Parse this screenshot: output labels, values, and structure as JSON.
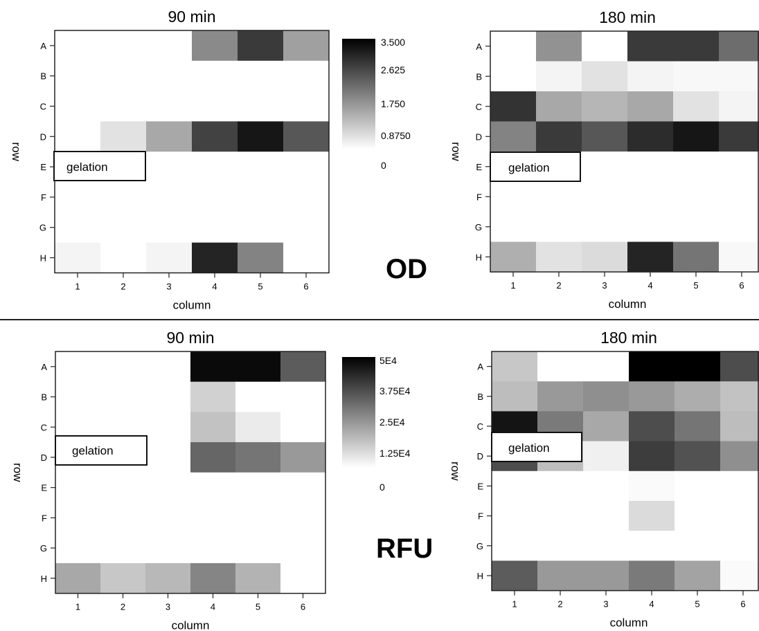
{
  "colors": {
    "low": "#ffffff",
    "high": "#000000",
    "frame": "#222222"
  },
  "labels": {
    "od": "OD",
    "rfu": "RFU",
    "gelation": "gelation"
  },
  "colorbars": {
    "od": {
      "ticks": [
        "3.500",
        "2.625",
        "1.750",
        "0.8750",
        "0"
      ],
      "min": 0,
      "max": 3.5
    },
    "rfu": {
      "ticks": [
        "5E4",
        "3.75E4",
        "2.5E4",
        "1.25E4",
        "0"
      ],
      "min": 0,
      "max": 50000
    }
  },
  "chart_data": [
    {
      "type": "heatmap",
      "title": "90 min",
      "xlabel": "column",
      "ylabel": "row",
      "x": [
        "1",
        "2",
        "3",
        "4",
        "5",
        "6"
      ],
      "y": [
        "A",
        "B",
        "C",
        "D",
        "E",
        "F",
        "G",
        "H"
      ],
      "vmin": 0,
      "vmax": 3.5,
      "values": [
        [
          0,
          0,
          0,
          1.6,
          2.7,
          1.3
        ],
        [
          0,
          0,
          0,
          0,
          0,
          0
        ],
        [
          0,
          0,
          0,
          0,
          0,
          0
        ],
        [
          0,
          0.4,
          1.2,
          2.6,
          3.2,
          2.3
        ],
        [
          0,
          0,
          0,
          0,
          0,
          0
        ],
        [
          0,
          0,
          0,
          0,
          0,
          0
        ],
        [
          0,
          0,
          0,
          0,
          0,
          0
        ],
        [
          0.15,
          0,
          0.15,
          3.0,
          1.7,
          0
        ]
      ]
    },
    {
      "type": "heatmap",
      "title": "180 min",
      "xlabel": "column",
      "ylabel": "row",
      "x": [
        "1",
        "2",
        "3",
        "4",
        "5",
        "6"
      ],
      "y": [
        "A",
        "B",
        "C",
        "D",
        "E",
        "F",
        "G",
        "H"
      ],
      "vmin": 0,
      "vmax": 3.5,
      "values": [
        [
          0,
          1.5,
          0,
          2.7,
          2.7,
          2.0
        ],
        [
          0,
          0.15,
          0.4,
          0.15,
          0.1,
          0.1
        ],
        [
          2.8,
          1.2,
          1.0,
          1.2,
          0.4,
          0.15
        ],
        [
          1.7,
          2.7,
          2.3,
          2.9,
          3.2,
          2.7
        ],
        [
          0,
          0,
          0,
          0,
          0,
          0
        ],
        [
          0,
          0,
          0,
          0,
          0,
          0
        ],
        [
          0,
          0,
          0,
          0,
          0,
          0
        ],
        [
          1.1,
          0.4,
          0.5,
          3.0,
          1.9,
          0.1
        ]
      ]
    },
    {
      "type": "heatmap",
      "title": "90 min",
      "xlabel": "column",
      "ylabel": "row",
      "x": [
        "1",
        "2",
        "3",
        "4",
        "5",
        "6"
      ],
      "y": [
        "A",
        "B",
        "C",
        "D",
        "E",
        "F",
        "G",
        "H"
      ],
      "vmin": 0,
      "vmax": 50000,
      "values": [
        [
          0,
          0,
          0,
          48000,
          48000,
          32000
        ],
        [
          0,
          0,
          0,
          9000,
          0,
          0
        ],
        [
          0,
          0,
          0,
          12000,
          4000,
          0
        ],
        [
          0,
          0,
          0,
          30000,
          27000,
          20000
        ],
        [
          0,
          0,
          0,
          0,
          0,
          0
        ],
        [
          0,
          0,
          0,
          0,
          0,
          0
        ],
        [
          0,
          0,
          0,
          0,
          0,
          0
        ],
        [
          17000,
          11000,
          14000,
          24000,
          15000,
          0
        ]
      ]
    },
    {
      "type": "heatmap",
      "title": "180 min",
      "xlabel": "column",
      "ylabel": "row",
      "x": [
        "1",
        "2",
        "3",
        "4",
        "5",
        "6"
      ],
      "y": [
        "A",
        "B",
        "C",
        "D",
        "E",
        "F",
        "G",
        "H"
      ],
      "vmin": 0,
      "vmax": 50000,
      "values": [
        [
          11000,
          0,
          0,
          50000,
          50000,
          35000
        ],
        [
          13000,
          20000,
          22000,
          20000,
          16000,
          12000
        ],
        [
          46000,
          26000,
          17000,
          35000,
          27000,
          13000
        ],
        [
          35000,
          13000,
          3000,
          38000,
          34000,
          22000
        ],
        [
          0,
          0,
          0,
          1000,
          0,
          0
        ],
        [
          0,
          0,
          0,
          7000,
          0,
          0
        ],
        [
          0,
          0,
          0,
          0,
          0,
          0
        ],
        [
          32000,
          20000,
          20000,
          26000,
          18000,
          1000
        ]
      ]
    }
  ]
}
